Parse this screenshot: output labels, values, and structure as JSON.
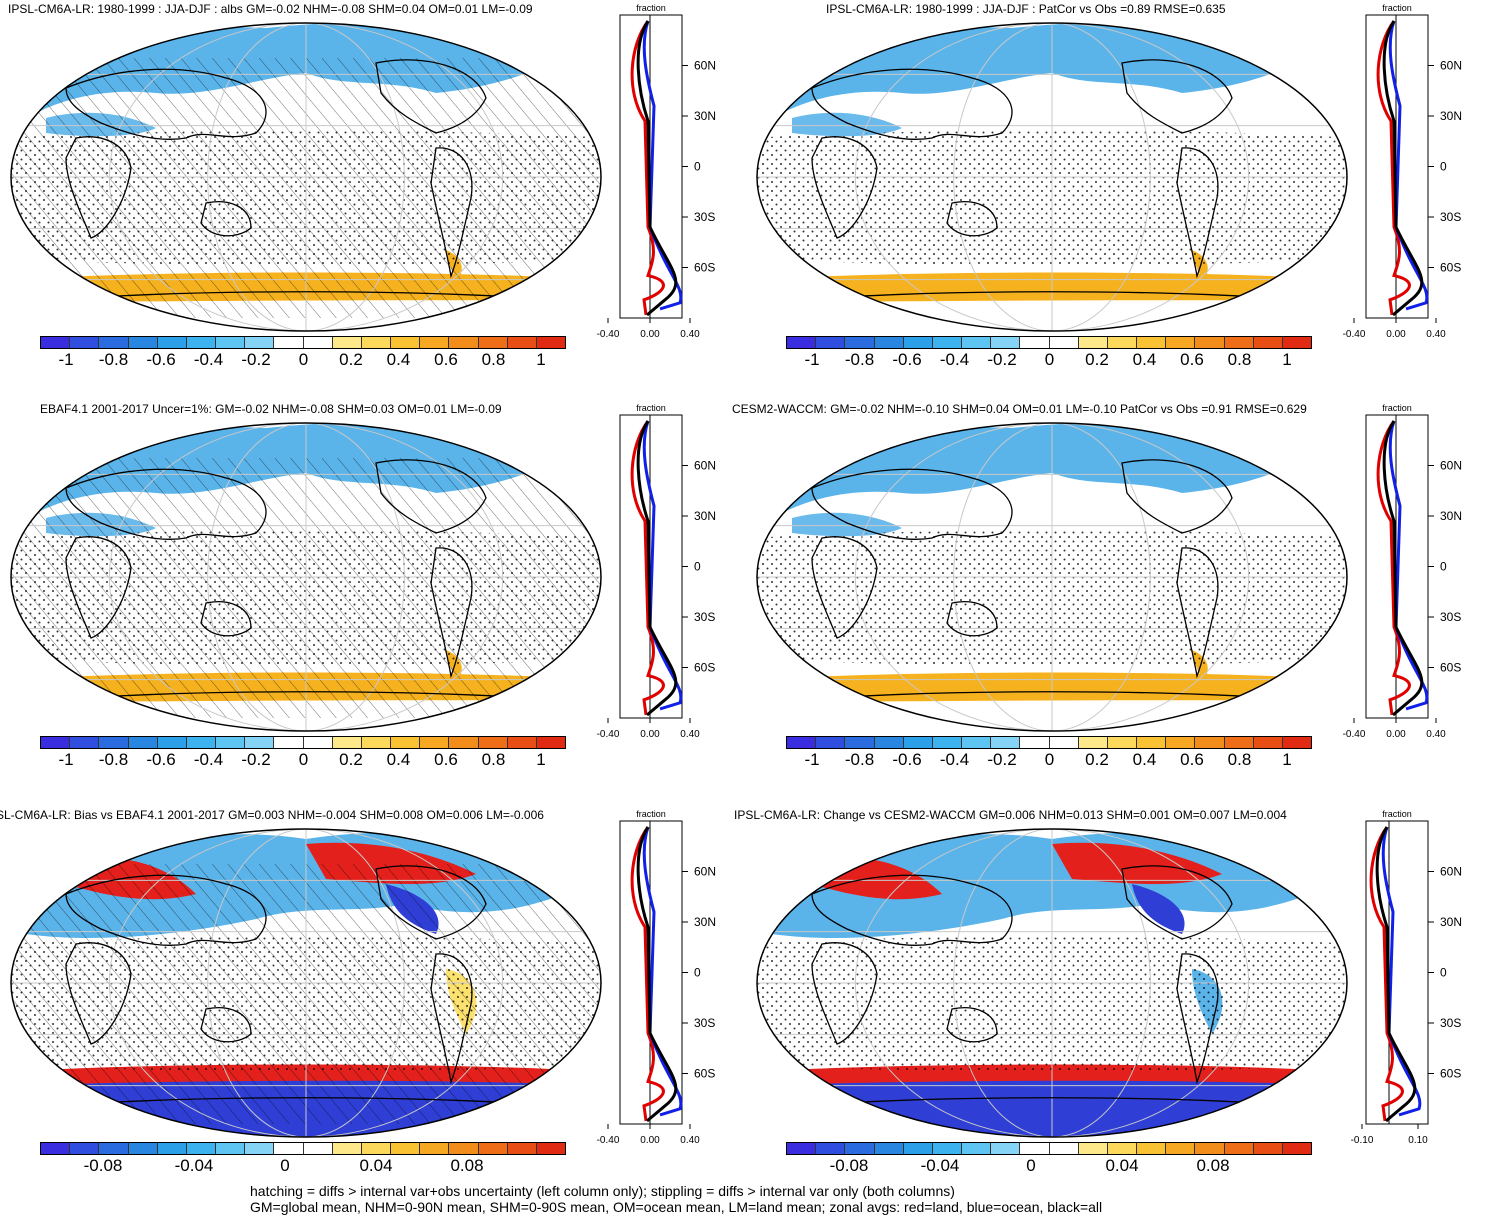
{
  "colors": {
    "ocean_white": "#ffffff",
    "land": "#ffffff",
    "blue_light": "#5ab4ea",
    "orange": "#f6b21e",
    "red": "#e3201b",
    "blue_dark": "#2f3fd6",
    "zonal_land": "#e00000",
    "zonal_ocean": "#1020e8",
    "zonal_all": "#000000"
  },
  "colorbar_colors": [
    "#3a2de0",
    "#2f4ee0",
    "#2a6be0",
    "#2886e0",
    "#2ba0e8",
    "#3cb3ef",
    "#5ec4f2",
    "#86d4f5",
    "#ffffff",
    "#ffffff",
    "#fde98a",
    "#fcd95a",
    "#f9c232",
    "#f6a823",
    "#f28c1b",
    "#ee6d16",
    "#e84d13",
    "#e02a12"
  ],
  "zonal_ticks": {
    "lat": [
      "60N",
      "30N",
      "0",
      "30S",
      "60S"
    ],
    "header": "fraction"
  },
  "panels": [
    {
      "title": "IPSL-CM6A-LR: 1980-1999 : JJA-DJF : albs GM=-0.02 NHM=-0.08 SHM=0.04 OM=0.01 LM=-0.09",
      "colorbar_labels": [
        "-1",
        "-0.8",
        "-0.6",
        "-0.4",
        "-0.2",
        "0",
        "0.2",
        "0.4",
        "0.6",
        "0.8",
        "1"
      ],
      "zonal_x_labels": [
        "-0.40",
        "0.00",
        "0.40"
      ],
      "hatching": true
    },
    {
      "title": "IPSL-CM6A-LR: 1980-1999 : JJA-DJF : PatCor vs Obs =0.89 RMSE=0.635",
      "colorbar_labels": [
        "-1",
        "-0.8",
        "-0.6",
        "-0.4",
        "-0.2",
        "0",
        "0.2",
        "0.4",
        "0.6",
        "0.8",
        "1"
      ],
      "zonal_x_labels": [
        "-0.40",
        "0.00",
        "0.40"
      ],
      "hatching": false
    },
    {
      "title": "EBAF4.1 2001-2017 Uncer=1%: GM=-0.02 NHM=-0.08 SHM=0.03 OM=0.01 LM=-0.09",
      "colorbar_labels": [
        "-1",
        "-0.8",
        "-0.6",
        "-0.4",
        "-0.2",
        "0",
        "0.2",
        "0.4",
        "0.6",
        "0.8",
        "1"
      ],
      "zonal_x_labels": [
        "-0.40",
        "0.00",
        "0.40"
      ],
      "hatching": true
    },
    {
      "title": "CESM2-WACCM: GM=-0.02 NHM=-0.10 SHM=0.04 OM=0.01 LM=-0.10 PatCor vs Obs =0.91 RMSE=0.629",
      "colorbar_labels": [
        "-1",
        "-0.8",
        "-0.6",
        "-0.4",
        "-0.2",
        "0",
        "0.2",
        "0.4",
        "0.6",
        "0.8",
        "1"
      ],
      "zonal_x_labels": [
        "-0.40",
        "0.00",
        "0.40"
      ],
      "hatching": false
    },
    {
      "title": "SL-CM6A-LR: Bias vs EBAF4.1 2001-2017 GM=0.003 NHM=-0.004 SHM=0.008 OM=0.006 LM=-0.006",
      "colorbar_labels": [
        "-0.08",
        "-0.04",
        "0",
        "0.04",
        "0.08"
      ],
      "zonal_x_labels": [
        "-0.40",
        "0.00",
        "0.40"
      ],
      "hatching": true
    },
    {
      "title": "IPSL-CM6A-LR: Change vs CESM2-WACCM GM=0.006 NHM=0.013 SHM=0.001 OM=0.007 LM=0.004",
      "colorbar_labels": [
        "-0.08",
        "-0.04",
        "0",
        "0.04",
        "0.08"
      ],
      "zonal_x_labels": [
        "-0.10",
        "0.10"
      ],
      "hatching": false
    }
  ],
  "footer": {
    "line1": "hatching = diffs > internal var+obs uncertainty (left column only); stippling = diffs > internal var only (both columns)",
    "line2": "GM=global mean, NHM=0-90N mean, SHM=0-90S mean, OM=ocean mean, LM=land mean; zonal avgs: red=land, blue=ocean, black=all"
  }
}
